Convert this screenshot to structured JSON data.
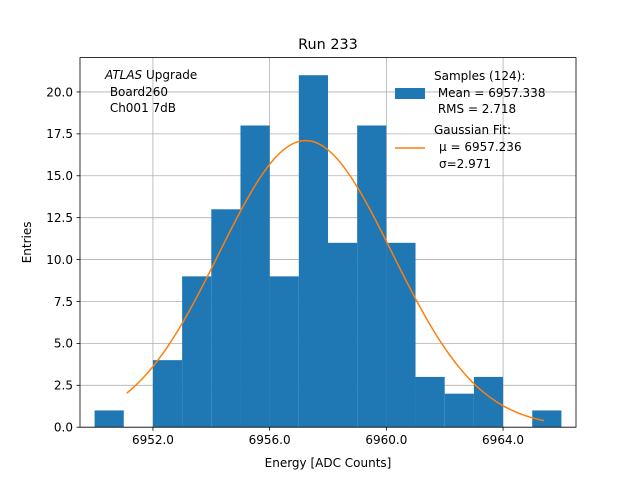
{
  "chart_data": {
    "type": "bar",
    "title": "Run 233",
    "xlabel": "Energy [ADC Counts]",
    "ylabel": "Entries",
    "xlim": [
      6949.5,
      6966.5
    ],
    "ylim": [
      0,
      22.05
    ],
    "grid": true,
    "x_ticks": [
      6952.0,
      6956.0,
      6960.0,
      6964.0
    ],
    "x_tick_labels": [
      "6952.0",
      "6956.0",
      "6960.0",
      "6964.0"
    ],
    "y_ticks": [
      0,
      2.5,
      5,
      7.5,
      10,
      12.5,
      15,
      17.5,
      20
    ],
    "y_tick_labels": [
      "0.0",
      "2.5",
      "5.0",
      "7.5",
      "10.0",
      "12.5",
      "15.0",
      "17.5",
      "20.0"
    ],
    "bin_edges": [
      6950.0,
      6951.0,
      6952.0,
      6953.0,
      6954.0,
      6955.0,
      6956.0,
      6957.0,
      6958.0,
      6959.0,
      6960.0,
      6961.0,
      6962.0,
      6963.0,
      6964.0,
      6965.0,
      6966.0
    ],
    "counts": [
      1,
      0,
      4,
      9,
      13,
      18,
      9,
      21,
      11,
      18,
      11,
      3,
      2,
      3,
      0,
      1
    ],
    "fit": {
      "mu": 6957.236,
      "sigma": 2.971,
      "amplitude": 17.1,
      "x_range": [
        6951.1,
        6965.4
      ]
    },
    "colors": {
      "bars": "#1f77b4",
      "fit": "#ff7f0e",
      "grid": "#b0b0b0"
    },
    "annotation": {
      "label_italic": "ATLAS",
      "label_rest": " Upgrade",
      "line2": " Board260",
      "line3": " Ch001 7dB"
    },
    "legend": {
      "placement": "top-right",
      "samples": [
        "Samples (124):",
        " Mean = 6957.338",
        " RMS = 2.718"
      ],
      "fit": [
        "Gaussian Fit:",
        "μ = 6957.236",
        "σ=2.971"
      ]
    }
  }
}
